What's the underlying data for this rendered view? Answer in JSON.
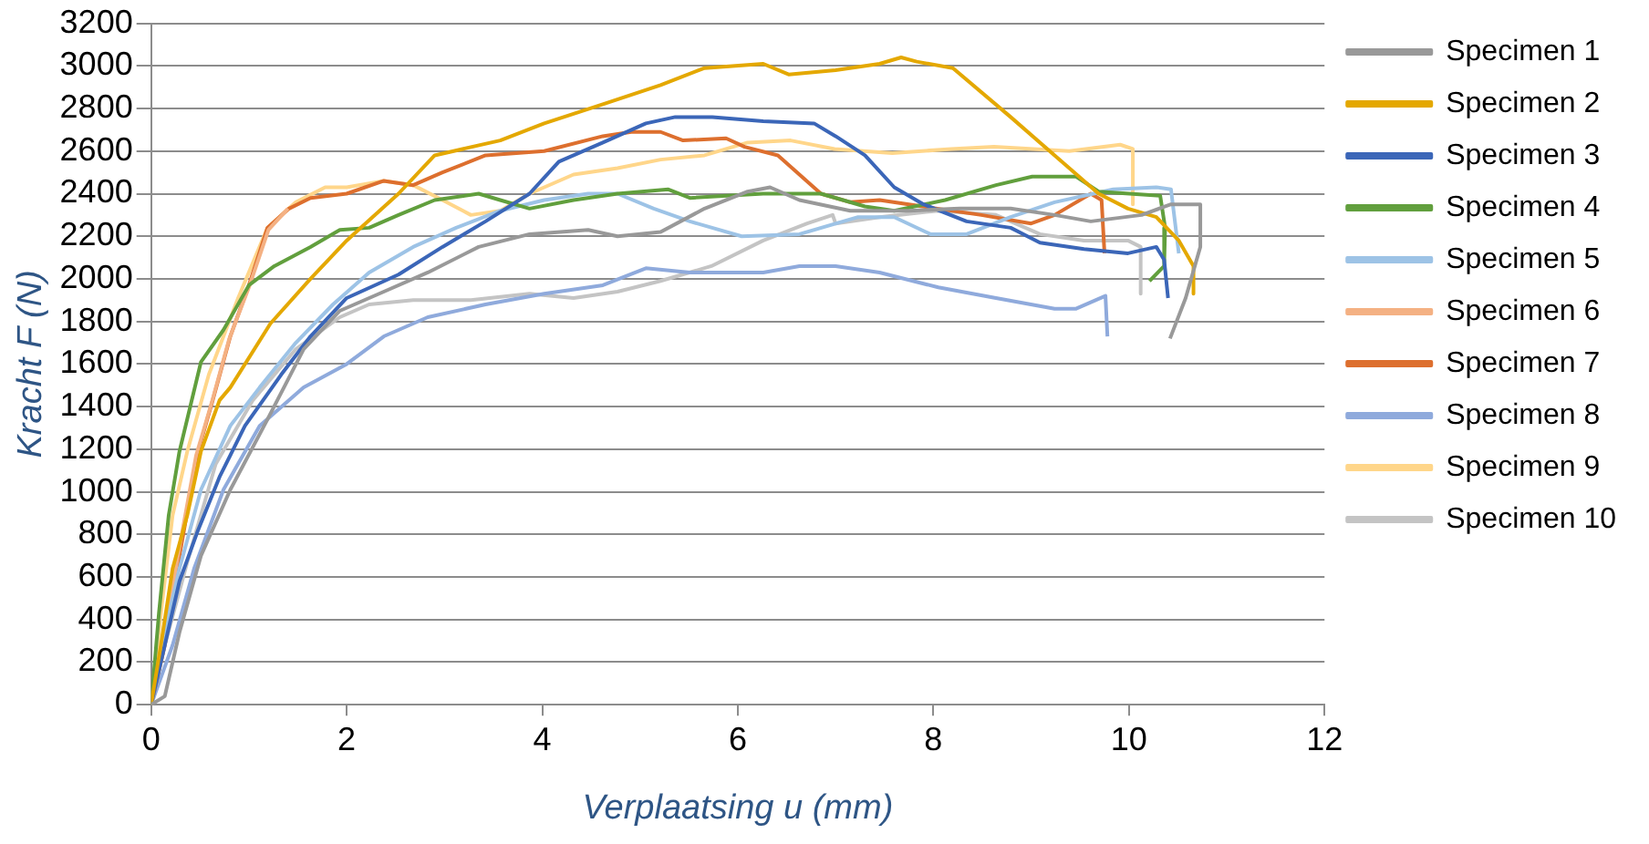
{
  "chart_data": {
    "type": "line",
    "xlabel": "Verplaatsing u (mm)",
    "ylabel": "Kracht F (N)",
    "xlim": [
      0,
      12
    ],
    "ylim": [
      0,
      3200
    ],
    "xticks": [
      0,
      2,
      4,
      6,
      8,
      10,
      12
    ],
    "yticks": [
      0,
      200,
      400,
      600,
      800,
      1000,
      1200,
      1400,
      1600,
      1800,
      2000,
      2200,
      2400,
      2600,
      2800,
      3000,
      3200
    ],
    "grid": "y",
    "legend": "right",
    "marker": "none",
    "line_style": "solid",
    "series": [
      {
        "name": "Specimen 1",
        "color": "#999999",
        "x": [
          0,
          0.14,
          0.29,
          0.51,
          0.81,
          1.19,
          1.56,
          1.93,
          2.38,
          2.83,
          3.35,
          3.87,
          4.47,
          4.77,
          5.21,
          5.66,
          6.1,
          6.33,
          6.63,
          7.15,
          7.75,
          8.27,
          8.79,
          9.24,
          9.61,
          10.13,
          10.43,
          10.73,
          10.73,
          10.58,
          10.42
        ],
        "values": [
          0,
          40,
          340,
          700,
          1010,
          1340,
          1670,
          1850,
          1940,
          2030,
          2150,
          2210,
          2230,
          2200,
          2220,
          2330,
          2410,
          2430,
          2370,
          2320,
          2320,
          2330,
          2330,
          2300,
          2270,
          2300,
          2350,
          2350,
          2150,
          1910,
          1720
        ]
      },
      {
        "name": "Specimen 2",
        "color": "#e4a800",
        "x": [
          0,
          0.1,
          0.22,
          0.37,
          0.51,
          0.7,
          0.81,
          1.22,
          1.63,
          2.0,
          2.53,
          2.9,
          3.57,
          4.02,
          4.62,
          5.21,
          5.66,
          6.26,
          6.52,
          7.0,
          7.45,
          7.67,
          7.83,
          8.2,
          8.79,
          9.24,
          9.69,
          9.99,
          10.28,
          10.51,
          10.66,
          10.66
        ],
        "values": [
          0,
          280,
          640,
          890,
          1190,
          1430,
          1490,
          1790,
          2000,
          2180,
          2400,
          2580,
          2650,
          2730,
          2820,
          2910,
          2990,
          3010,
          2960,
          2980,
          3010,
          3040,
          3020,
          2990,
          2760,
          2580,
          2400,
          2330,
          2290,
          2180,
          2060,
          1930
        ]
      },
      {
        "name": "Specimen 3",
        "color": "#3b66b8",
        "x": [
          0,
          0.14,
          0.29,
          0.48,
          0.7,
          0.96,
          1.33,
          1.63,
          2.0,
          2.53,
          2.98,
          3.42,
          3.87,
          4.17,
          4.62,
          5.06,
          5.36,
          5.74,
          6.26,
          6.78,
          7.0,
          7.3,
          7.6,
          7.9,
          8.34,
          8.79,
          9.09,
          9.54,
          9.99,
          10.28,
          10.36,
          10.4
        ],
        "values": [
          0,
          280,
          580,
          820,
          1070,
          1310,
          1550,
          1730,
          1910,
          2020,
          2150,
          2270,
          2400,
          2550,
          2640,
          2730,
          2760,
          2760,
          2740,
          2730,
          2670,
          2580,
          2430,
          2350,
          2270,
          2240,
          2170,
          2140,
          2120,
          2150,
          2090,
          1910
        ]
      },
      {
        "name": "Specimen 4",
        "color": "#619f3d",
        "x": [
          0,
          0.08,
          0.18,
          0.29,
          0.51,
          0.74,
          1.0,
          1.26,
          1.63,
          1.93,
          2.23,
          2.53,
          2.9,
          3.35,
          3.57,
          3.87,
          4.32,
          4.77,
          5.29,
          5.51,
          6.26,
          6.85,
          7.3,
          7.6,
          8.12,
          8.64,
          9.01,
          9.46,
          9.69,
          10.32,
          10.37,
          10.36,
          10.21
        ],
        "values": [
          0,
          430,
          890,
          1190,
          1610,
          1760,
          1970,
          2060,
          2150,
          2230,
          2240,
          2300,
          2370,
          2400,
          2370,
          2330,
          2370,
          2400,
          2420,
          2380,
          2400,
          2400,
          2340,
          2320,
          2370,
          2440,
          2480,
          2480,
          2410,
          2390,
          2240,
          2060,
          1990
        ]
      },
      {
        "name": "Specimen 5",
        "color": "#9dc3e6",
        "x": [
          0,
          0.14,
          0.29,
          0.51,
          0.81,
          1.11,
          1.48,
          1.86,
          2.23,
          2.68,
          3.12,
          3.57,
          4.02,
          4.47,
          4.77,
          5.14,
          5.51,
          6.04,
          6.63,
          7.23,
          7.6,
          7.97,
          8.34,
          8.79,
          9.24,
          9.84,
          10.28,
          10.43,
          10.51
        ],
        "values": [
          0,
          340,
          640,
          1010,
          1310,
          1490,
          1700,
          1880,
          2030,
          2150,
          2240,
          2320,
          2370,
          2400,
          2400,
          2330,
          2270,
          2200,
          2210,
          2290,
          2290,
          2210,
          2210,
          2290,
          2360,
          2420,
          2430,
          2420,
          2120
        ]
      },
      {
        "name": "Specimen 6",
        "color": "#f4b183",
        "x": [
          0,
          0.12,
          0.27,
          0.46,
          0.62,
          0.8,
          1.0,
          1.2,
          1.4
        ],
        "values": [
          0,
          260,
          690,
          1170,
          1420,
          1720,
          1960,
          2230,
          2330
        ]
      },
      {
        "name": "Specimen 7",
        "color": "#dd6f2e",
        "x": [
          0,
          0.14,
          0.29,
          0.48,
          0.63,
          0.81,
          1.0,
          1.19,
          1.41,
          1.63,
          2.0,
          2.38,
          2.68,
          2.98,
          3.42,
          4.02,
          4.62,
          4.91,
          5.21,
          5.44,
          5.88,
          6.07,
          6.41,
          6.63,
          6.85,
          7.15,
          7.45,
          7.89,
          8.49,
          9.0,
          9.24,
          9.61,
          9.72,
          9.75
        ],
        "values": [
          0,
          280,
          700,
          1190,
          1430,
          1730,
          1970,
          2240,
          2330,
          2380,
          2400,
          2460,
          2440,
          2500,
          2580,
          2600,
          2670,
          2690,
          2690,
          2650,
          2660,
          2620,
          2580,
          2490,
          2400,
          2360,
          2370,
          2340,
          2300,
          2260,
          2300,
          2400,
          2370,
          2120
        ]
      },
      {
        "name": "Specimen 8",
        "color": "#8faadc",
        "x": [
          0,
          0.22,
          0.44,
          0.74,
          1.11,
          1.56,
          2.0,
          2.38,
          2.83,
          3.42,
          4.02,
          4.62,
          5.06,
          5.51,
          6.26,
          6.63,
          7.0,
          7.45,
          8.05,
          8.64,
          9.24,
          9.46,
          9.76,
          9.78
        ],
        "values": [
          0,
          280,
          640,
          1010,
          1310,
          1490,
          1600,
          1730,
          1820,
          1880,
          1930,
          1970,
          2050,
          2030,
          2030,
          2060,
          2060,
          2030,
          1960,
          1910,
          1860,
          1860,
          1920,
          1730
        ]
      },
      {
        "name": "Specimen 9",
        "color": "#ffd68a",
        "x": [
          0,
          0.1,
          0.22,
          0.37,
          0.59,
          0.89,
          1.19,
          1.48,
          1.78,
          2.0,
          2.38,
          2.68,
          2.98,
          3.27,
          3.57,
          3.87,
          4.32,
          4.77,
          5.21,
          5.66,
          6.1,
          6.54,
          6.99,
          7.58,
          8.18,
          8.62,
          9.39,
          9.91,
          10.04,
          10.04
        ],
        "values": [
          0,
          430,
          890,
          1190,
          1550,
          1910,
          2240,
          2360,
          2430,
          2430,
          2460,
          2440,
          2370,
          2300,
          2320,
          2400,
          2490,
          2520,
          2560,
          2580,
          2640,
          2650,
          2610,
          2590,
          2610,
          2620,
          2600,
          2630,
          2610,
          2350
        ]
      },
      {
        "name": "Specimen 10",
        "color": "#c4c4c4",
        "x": [
          0,
          0.14,
          0.37,
          0.66,
          1.04,
          1.48,
          1.93,
          2.23,
          2.68,
          3.27,
          3.87,
          4.32,
          4.77,
          5.21,
          5.73,
          6.26,
          6.71,
          6.97,
          7.0,
          7.45,
          8.05,
          8.64,
          9.09,
          9.54,
          9.99,
          10.12,
          10.12
        ],
        "values": [
          0,
          280,
          670,
          1130,
          1430,
          1670,
          1820,
          1880,
          1900,
          1900,
          1930,
          1910,
          1940,
          1990,
          2060,
          2180,
          2260,
          2300,
          2260,
          2290,
          2320,
          2300,
          2210,
          2180,
          2180,
          2150,
          1930
        ]
      }
    ]
  }
}
